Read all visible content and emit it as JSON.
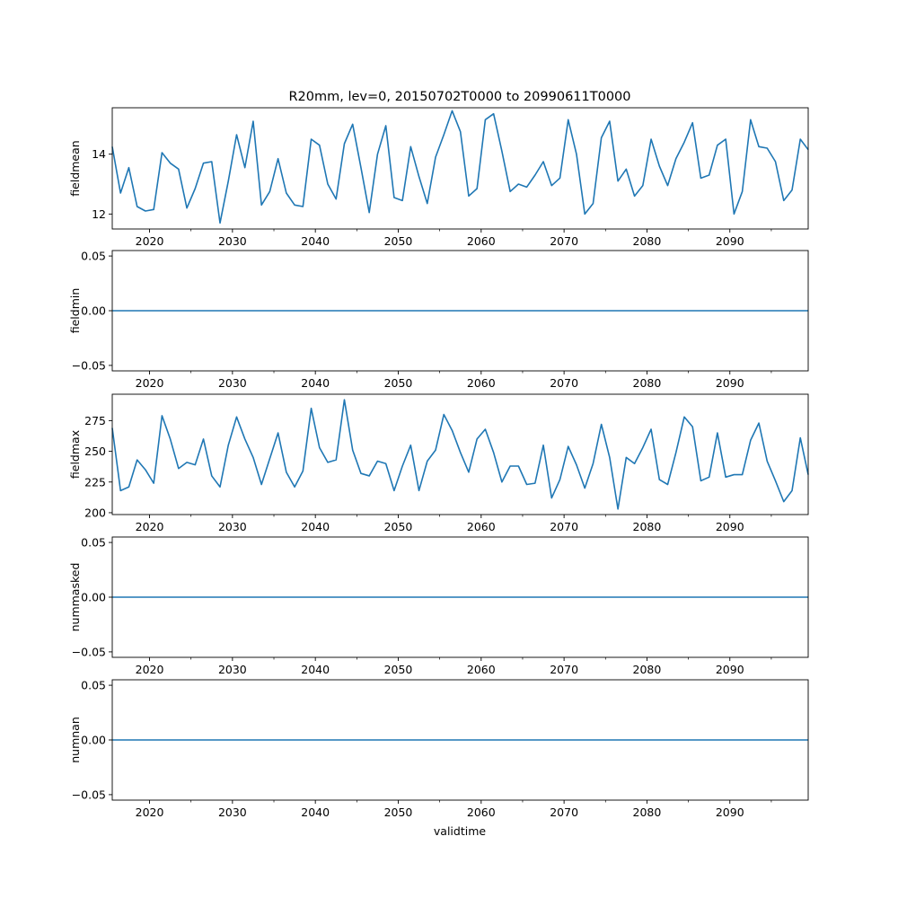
{
  "chart_data": {
    "type": "line",
    "title": "R20mm, lev=0, 20150702T0000 to 20990611T0000",
    "xlabel": "validtime",
    "xlim": [
      2015.5,
      2099.45
    ],
    "x": [
      2015.5,
      2016.5,
      2017.5,
      2018.5,
      2019.5,
      2020.5,
      2021.5,
      2022.5,
      2023.5,
      2024.5,
      2025.5,
      2026.5,
      2027.5,
      2028.5,
      2029.5,
      2030.5,
      2031.5,
      2032.5,
      2033.5,
      2034.5,
      2035.5,
      2036.5,
      2037.5,
      2038.5,
      2039.5,
      2040.5,
      2041.5,
      2042.5,
      2043.5,
      2044.5,
      2045.5,
      2046.5,
      2047.5,
      2048.5,
      2049.5,
      2050.5,
      2051.5,
      2052.5,
      2053.5,
      2054.5,
      2055.5,
      2056.5,
      2057.5,
      2058.5,
      2059.5,
      2060.5,
      2061.5,
      2062.5,
      2063.5,
      2064.5,
      2065.5,
      2066.5,
      2067.5,
      2068.5,
      2069.5,
      2070.5,
      2071.5,
      2072.5,
      2073.5,
      2074.5,
      2075.5,
      2076.5,
      2077.5,
      2078.5,
      2079.5,
      2080.5,
      2081.5,
      2082.5,
      2083.5,
      2084.5,
      2085.5,
      2086.5,
      2087.5,
      2088.5,
      2089.5,
      2090.5,
      2091.5,
      2092.5,
      2093.5,
      2094.5,
      2095.5,
      2096.5,
      2097.5,
      2098.5,
      2099.45
    ],
    "xticks": [
      2020,
      2030,
      2040,
      2050,
      2060,
      2070,
      2080,
      2090
    ],
    "xtick_labels": [
      "2020",
      "2030",
      "2040",
      "2050",
      "2060",
      "2070",
      "2080",
      "2090"
    ],
    "line_color": "#1f77b4",
    "subplots": [
      {
        "ylabel": "fieldmean",
        "ylim": [
          11.5,
          15.55
        ],
        "yticks": [
          12,
          14
        ],
        "ytick_labels": [
          "12",
          "14"
        ],
        "values": [
          14.25,
          12.7,
          13.55,
          12.25,
          12.1,
          12.15,
          14.05,
          13.7,
          13.5,
          12.2,
          12.85,
          13.7,
          13.75,
          11.7,
          13.1,
          14.65,
          13.55,
          15.1,
          12.3,
          12.75,
          13.85,
          12.7,
          12.3,
          12.25,
          14.5,
          14.3,
          13.0,
          12.5,
          14.35,
          15.0,
          13.55,
          12.05,
          14.0,
          14.95,
          12.55,
          12.45,
          14.25,
          13.25,
          12.35,
          13.9,
          14.65,
          15.45,
          14.75,
          12.6,
          12.85,
          15.15,
          15.35,
          14.1,
          12.75,
          13.0,
          12.9,
          13.3,
          13.75,
          12.95,
          13.2,
          15.15,
          14.0,
          12.0,
          12.35,
          14.55,
          15.1,
          13.1,
          13.5,
          12.6,
          12.95,
          14.5,
          13.6,
          12.95,
          13.85,
          14.4,
          15.05,
          13.2,
          13.3,
          14.3,
          14.5,
          12.0,
          12.75,
          15.15,
          14.25,
          14.2,
          13.75,
          12.45,
          12.8,
          14.5,
          14.15
        ]
      },
      {
        "ylabel": "fieldmin",
        "ylim": [
          -0.055,
          0.055
        ],
        "yticks": [
          -0.05,
          0.0,
          0.05
        ],
        "ytick_labels": [
          "−0.05",
          "0.00",
          "0.05"
        ],
        "constant": 0
      },
      {
        "ylabel": "fieldmax",
        "ylim": [
          198.5,
          296.5
        ],
        "yticks": [
          200,
          225,
          250,
          275
        ],
        "ytick_labels": [
          "200",
          "225",
          "250",
          "275"
        ],
        "values": [
          269,
          218,
          221,
          243,
          235,
          224,
          279,
          260,
          236,
          241,
          239,
          260,
          230,
          221,
          255,
          278,
          260,
          245,
          223,
          244,
          265,
          233,
          221,
          234,
          285,
          253,
          241,
          243,
          292,
          251,
          232,
          230,
          242,
          240,
          218,
          238,
          255,
          218,
          242,
          251,
          280,
          267,
          249,
          233,
          260,
          268,
          249,
          225,
          238,
          238,
          223,
          224,
          255,
          212,
          227,
          254,
          239,
          220,
          240,
          272,
          245,
          203,
          245,
          240,
          253,
          268,
          227,
          223,
          249,
          278,
          270,
          226,
          229,
          265,
          229,
          231,
          231,
          259,
          273,
          242,
          226,
          209,
          218,
          261,
          231
        ]
      },
      {
        "ylabel": "nummasked",
        "ylim": [
          -0.055,
          0.055
        ],
        "yticks": [
          -0.05,
          0.0,
          0.05
        ],
        "ytick_labels": [
          "−0.05",
          "0.00",
          "0.05"
        ],
        "constant": 0
      },
      {
        "ylabel": "numnan",
        "ylim": [
          -0.055,
          0.055
        ],
        "yticks": [
          -0.05,
          0.0,
          0.05
        ],
        "ytick_labels": [
          "−0.05",
          "0.00",
          "0.05"
        ],
        "constant": 0
      }
    ]
  }
}
